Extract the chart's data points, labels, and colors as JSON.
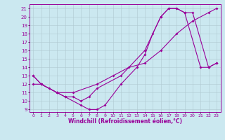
{
  "xlabel": "Windchill (Refroidissement éolien,°C)",
  "bg_color": "#cbe8f0",
  "grid_color": "#b0c8d0",
  "line_color": "#990099",
  "xlim": [
    -0.5,
    23.5
  ],
  "ylim": [
    8.7,
    21.5
  ],
  "xticks": [
    0,
    1,
    2,
    3,
    4,
    5,
    6,
    7,
    8,
    9,
    10,
    11,
    12,
    13,
    14,
    15,
    16,
    17,
    18,
    19,
    20,
    21,
    22,
    23
  ],
  "yticks": [
    9,
    10,
    11,
    12,
    13,
    14,
    15,
    16,
    17,
    18,
    19,
    20,
    21
  ],
  "line1_x": [
    0,
    1,
    3,
    4,
    6,
    7,
    8,
    9,
    11,
    13,
    14,
    15,
    16,
    17,
    18,
    19,
    20,
    22,
    23
  ],
  "line1_y": [
    13.0,
    12.0,
    11.0,
    10.5,
    9.5,
    9.0,
    9.0,
    9.5,
    12.0,
    14.0,
    15.5,
    18.0,
    20.0,
    21.0,
    21.0,
    20.5,
    20.5,
    14.0,
    14.5
  ],
  "line2_x": [
    0,
    1,
    3,
    5,
    8,
    10,
    12,
    14,
    16,
    18,
    20,
    22,
    23
  ],
  "line2_y": [
    12.0,
    12.0,
    11.0,
    11.0,
    12.0,
    13.0,
    14.0,
    14.5,
    16.0,
    18.0,
    19.5,
    20.5,
    21.0
  ],
  "line3_x": [
    0,
    1,
    2,
    3,
    4,
    5,
    6,
    7,
    8,
    11,
    14,
    16,
    17,
    18,
    19,
    21,
    22,
    23
  ],
  "line3_y": [
    13.0,
    12.0,
    11.5,
    11.0,
    10.5,
    10.5,
    10.0,
    10.5,
    11.5,
    13.0,
    16.0,
    20.0,
    21.0,
    21.0,
    20.5,
    14.0,
    14.0,
    14.5
  ],
  "tick_fontsize": 5,
  "xlabel_fontsize": 5.5
}
